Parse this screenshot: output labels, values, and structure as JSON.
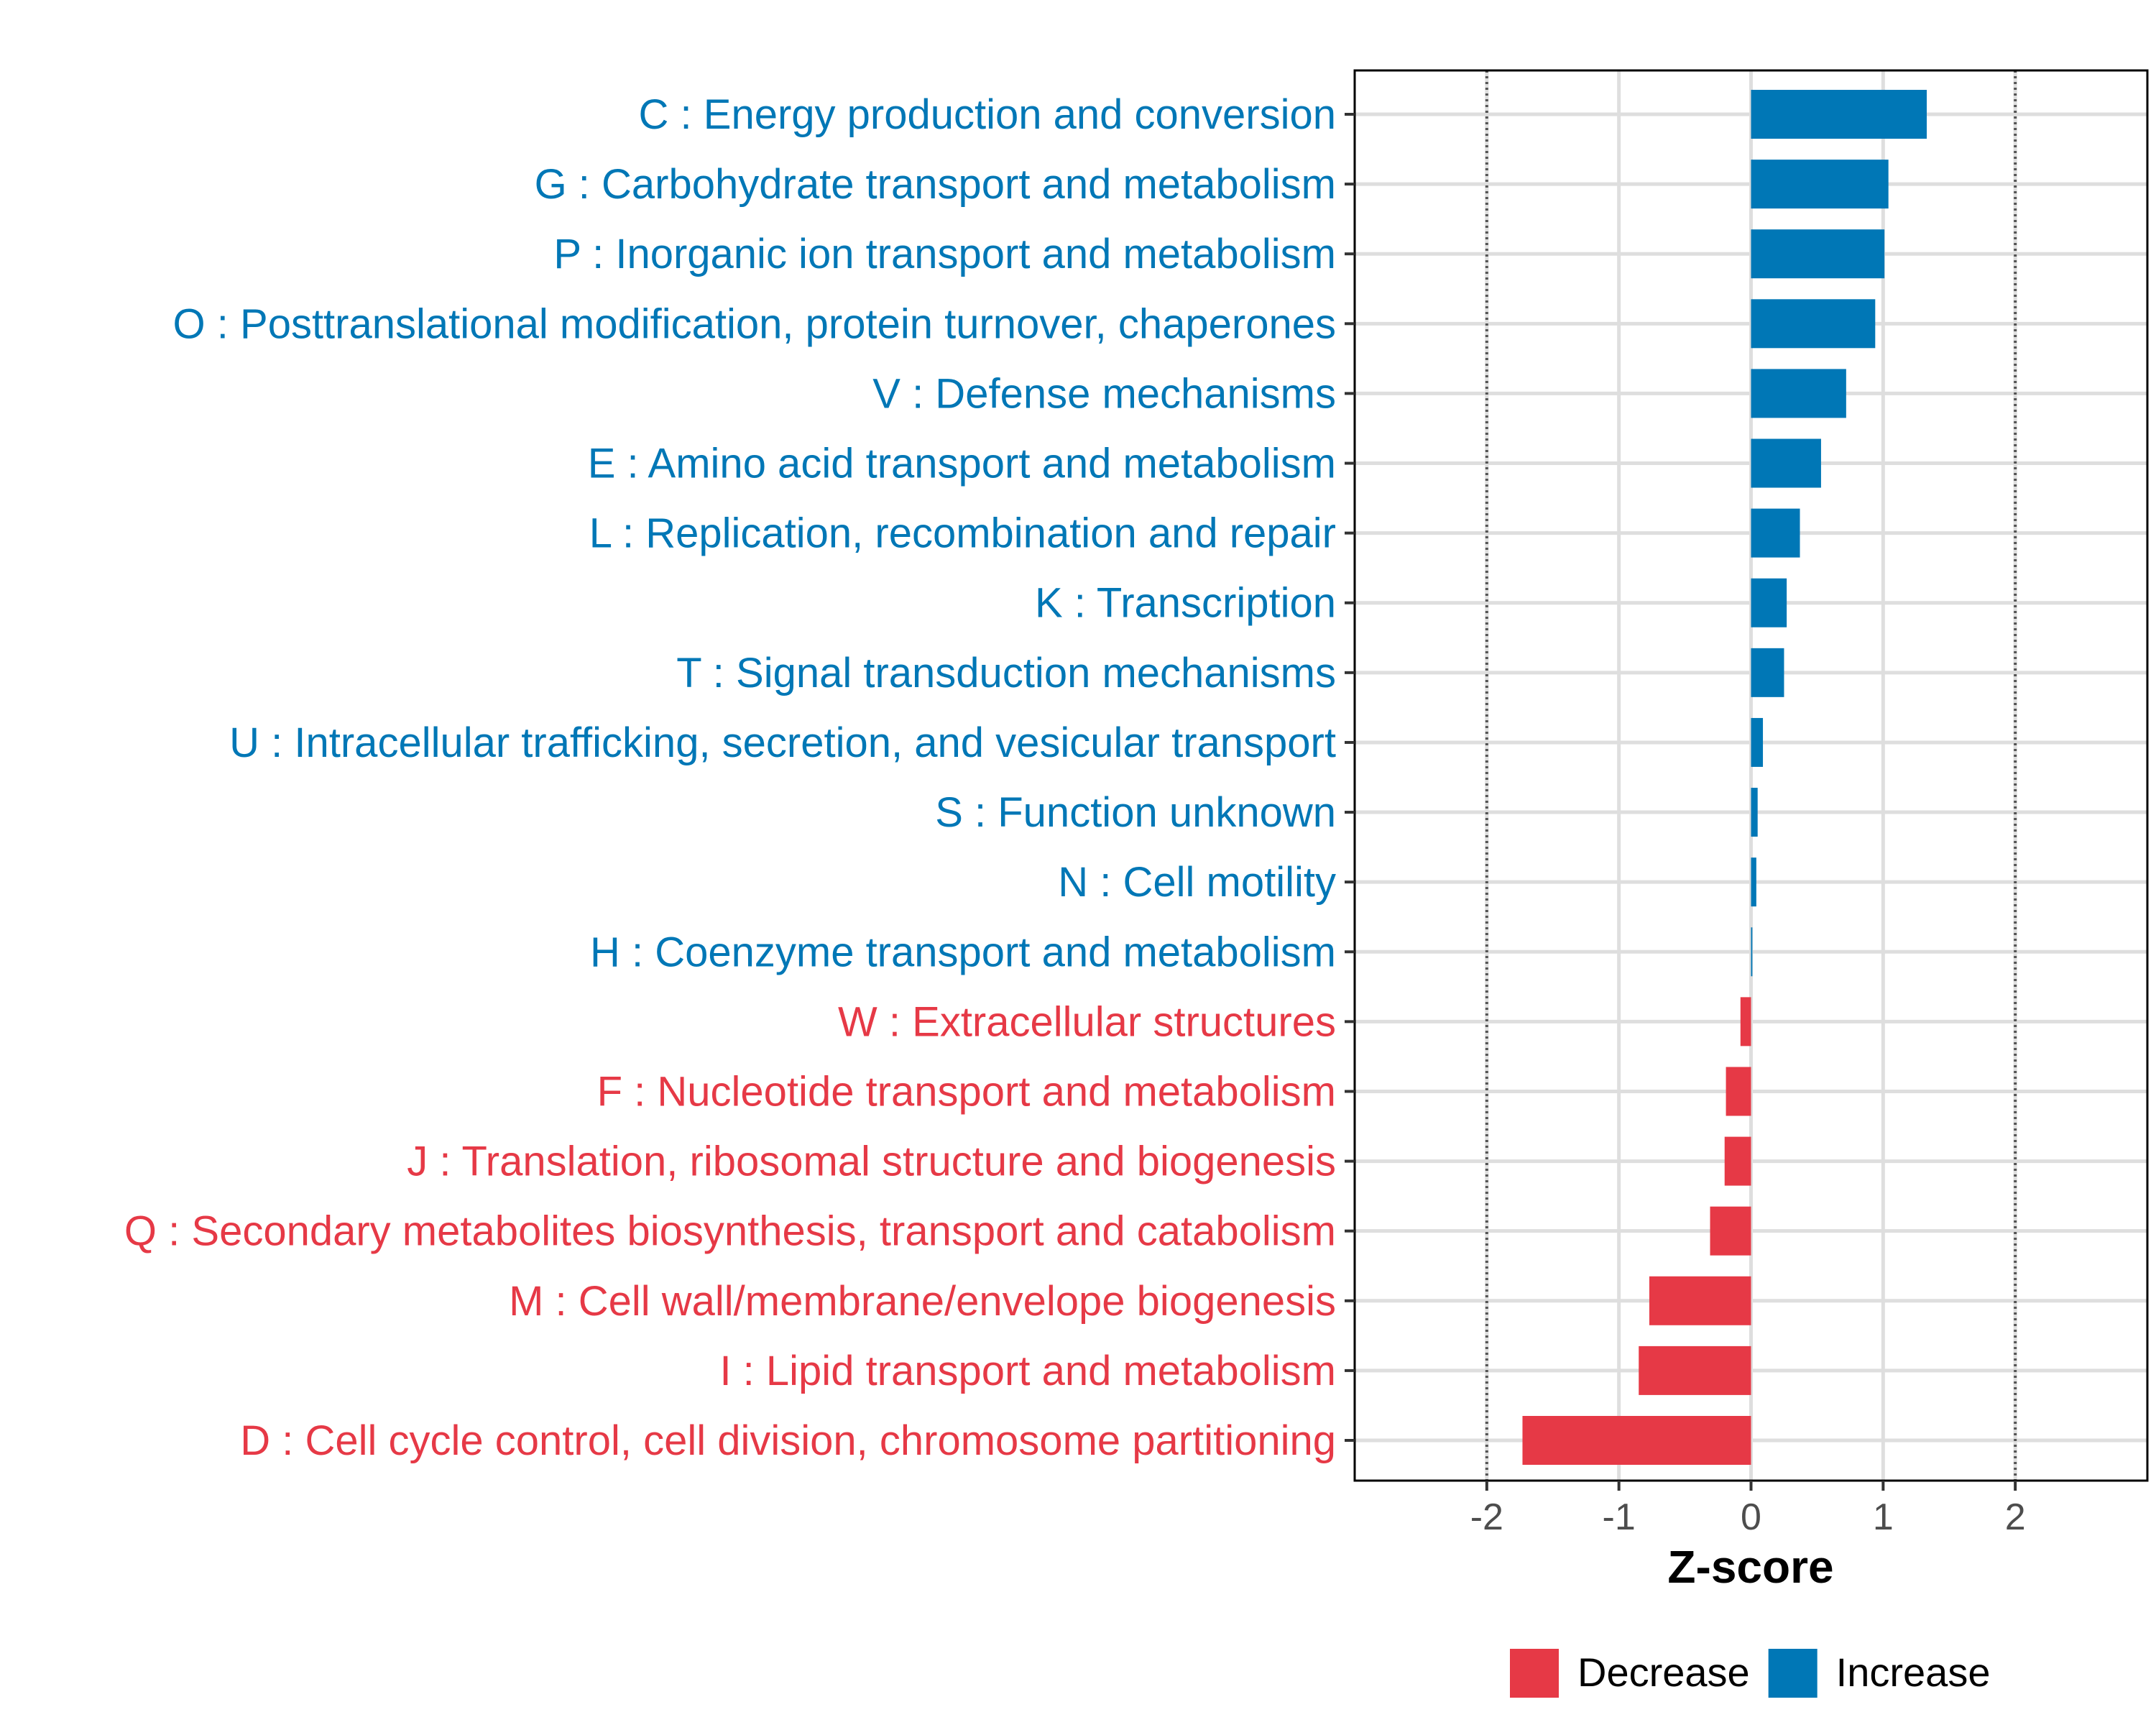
{
  "chart_data": {
    "type": "bar",
    "orientation": "horizontal",
    "xlabel": "Z-score",
    "xlim": [
      -3.0,
      3.0
    ],
    "xticks": [
      -2,
      -1,
      0,
      1,
      2
    ],
    "xtick_labels": [
      "-2",
      "-1",
      "0",
      "1",
      "2"
    ],
    "reference_lines": [
      -2,
      2
    ],
    "categories": [
      "C : Energy production and conversion",
      "G : Carbohydrate transport and metabolism",
      "P : Inorganic ion transport and metabolism",
      "O : Posttranslational modification, protein turnover, chaperones",
      "V : Defense mechanisms",
      "E : Amino acid transport and metabolism",
      "L : Replication, recombination and repair",
      "K : Transcription",
      "T : Signal transduction mechanisms",
      "U : Intracellular trafficking, secretion, and vesicular transport",
      "S : Function unknown",
      "N : Cell motility",
      "H : Coenzyme transport and metabolism",
      "W : Extracellular structures",
      "F : Nucleotide transport and metabolism",
      "J : Translation, ribosomal structure and biogenesis",
      "Q : Secondary metabolites biosynthesis, transport and catabolism",
      "M : Cell wall/membrane/envelope biogenesis",
      "I : Lipid transport and metabolism",
      "D : Cell cycle control, cell division, chromosome partitioning"
    ],
    "values": [
      1.33,
      1.04,
      1.01,
      0.94,
      0.72,
      0.53,
      0.37,
      0.27,
      0.25,
      0.09,
      0.05,
      0.04,
      0.01,
      -0.08,
      -0.19,
      -0.2,
      -0.31,
      -0.77,
      -0.85,
      -1.73
    ],
    "groups": [
      "Increase",
      "Increase",
      "Increase",
      "Increase",
      "Increase",
      "Increase",
      "Increase",
      "Increase",
      "Increase",
      "Increase",
      "Increase",
      "Increase",
      "Increase",
      "Decrease",
      "Decrease",
      "Decrease",
      "Decrease",
      "Decrease",
      "Decrease",
      "Decrease"
    ],
    "legend": [
      "Decrease",
      "Increase"
    ],
    "legend_position": "bottom",
    "colors": {
      "Decrease": "#E63946",
      "Increase": "#0077B6"
    },
    "grid": true
  }
}
